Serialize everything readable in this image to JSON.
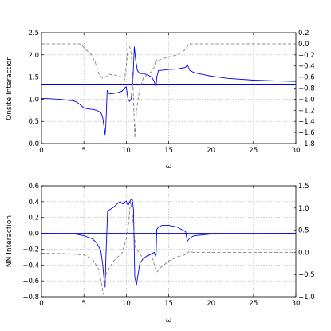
{
  "chart_data": [
    {
      "type": "line",
      "xlabel": "ω",
      "ylabel": "Onsite Interaction",
      "xlim": [
        0,
        30
      ],
      "ylim": [
        0.0,
        2.5
      ],
      "y2lim": [
        -1.8,
        0.2
      ],
      "xticks": [
        "0",
        "5",
        "10",
        "15",
        "20",
        "25",
        "30"
      ],
      "yticks": [
        "0.0",
        "0.5",
        "1.0",
        "1.5",
        "2.0",
        "2.5"
      ],
      "y2ticks": [
        "−1.8",
        "−1.6",
        "−1.4",
        "−1.2",
        "−1.0",
        "−0.8",
        "−0.6",
        "−0.4",
        "−0.2",
        "0.0",
        "0.2"
      ],
      "grid": true,
      "series": [
        {
          "axis": "left",
          "style": "solid",
          "color": "#0000ee",
          "x": [
            0,
            1,
            2,
            3,
            3.8,
            4.2,
            4.6,
            5,
            5.5,
            6,
            6.5,
            7,
            7.2,
            7.4,
            7.5,
            7.6,
            7.75,
            8,
            8.5,
            9,
            9.5,
            9.8,
            10,
            10.2,
            10.4,
            10.6,
            10.8,
            10.95,
            11.1,
            11.3,
            11.6,
            12,
            12.5,
            13,
            13.3,
            13.5,
            13.6,
            13.8,
            14,
            15,
            16,
            16.5,
            17,
            17.2,
            17.5,
            18,
            19,
            20,
            22,
            25,
            28,
            30
          ],
          "y": [
            1.02,
            1.01,
            1.0,
            0.98,
            0.96,
            0.93,
            0.87,
            0.8,
            0.78,
            0.77,
            0.75,
            0.7,
            0.6,
            0.35,
            0.2,
            0.45,
            1.2,
            1.12,
            1.13,
            1.15,
            1.18,
            1.25,
            1.28,
            1.0,
            0.95,
            1.02,
            1.5,
            2.18,
            1.9,
            1.65,
            1.58,
            1.58,
            1.55,
            1.5,
            1.4,
            1.28,
            1.5,
            1.65,
            1.65,
            1.67,
            1.68,
            1.7,
            1.72,
            1.78,
            1.65,
            1.6,
            1.56,
            1.52,
            1.47,
            1.43,
            1.41,
            1.4
          ]
        },
        {
          "axis": "left",
          "style": "solid",
          "color": "#0000ee",
          "x": [
            0,
            30
          ],
          "y": [
            1.34,
            1.34
          ]
        },
        {
          "axis": "right",
          "style": "dashed",
          "color": "#808080",
          "x": [
            0,
            4.5,
            4.8,
            5.2,
            5.8,
            6.3,
            6.8,
            7.2,
            7.6,
            8,
            8.5,
            9,
            9.5,
            9.8,
            10.0,
            10.2,
            10.4,
            10.6,
            10.8,
            11.0,
            11.2,
            11.6,
            12,
            12.5,
            13,
            13.3,
            13.5,
            13.7,
            14,
            15,
            16,
            16.5,
            17,
            17.3,
            17.6,
            18,
            20,
            25,
            30
          ],
          "y": [
            0.0,
            0.0,
            -0.03,
            -0.1,
            -0.18,
            -0.32,
            -0.55,
            -0.62,
            -0.6,
            -0.55,
            -0.56,
            -0.58,
            -0.6,
            -0.65,
            -0.4,
            -0.05,
            -0.05,
            -0.2,
            -0.75,
            -1.7,
            -1.2,
            -0.8,
            -0.62,
            -0.55,
            -0.5,
            -0.42,
            -0.28,
            -0.33,
            -0.28,
            -0.24,
            -0.2,
            -0.16,
            -0.1,
            -0.03,
            0.0,
            0.0,
            0.0,
            0.0,
            0.0
          ]
        }
      ]
    },
    {
      "type": "line",
      "xlabel": "ω",
      "ylabel": "NN Interaction",
      "xlim": [
        0,
        30
      ],
      "ylim": [
        -0.8,
        0.6
      ],
      "y2lim": [
        -1.0,
        1.5
      ],
      "xticks": [
        "0",
        "5",
        "10",
        "15",
        "20",
        "25",
        "30"
      ],
      "yticks": [
        "−0.8",
        "−0.6",
        "−0.4",
        "−0.2",
        "0.0",
        "0.2",
        "0.4",
        "0.6"
      ],
      "y2ticks": [
        "−1.0",
        "−0.5",
        "0.0",
        "0.5",
        "1.0",
        "1.5"
      ],
      "grid": true,
      "series": [
        {
          "axis": "left",
          "style": "solid",
          "color": "#0000ee",
          "x": [
            0,
            2,
            4,
            5,
            6,
            6.5,
            7,
            7.2,
            7.4,
            7.5,
            7.6,
            7.8,
            8.5,
            9,
            9.3,
            9.6,
            10,
            10.2,
            10.5,
            10.7,
            10.85,
            11.0,
            11.2,
            11.6,
            12,
            12.5,
            13,
            13.3,
            13.5,
            13.6,
            13.8,
            14.2,
            15,
            16,
            16.5,
            17,
            17.2,
            17.5,
            18,
            20,
            25,
            30
          ],
          "y": [
            0.0,
            -0.005,
            -0.01,
            -0.03,
            -0.07,
            -0.12,
            -0.22,
            -0.38,
            -0.6,
            -0.68,
            -0.3,
            0.28,
            0.33,
            0.38,
            0.4,
            0.37,
            0.41,
            0.35,
            0.42,
            0.43,
            0.3,
            -0.55,
            -0.65,
            -0.38,
            -0.32,
            -0.28,
            -0.26,
            -0.24,
            -0.3,
            0.05,
            0.08,
            0.1,
            0.1,
            0.08,
            0.05,
            0.02,
            -0.1,
            -0.06,
            -0.03,
            -0.01,
            -0.005,
            0.0
          ]
        },
        {
          "axis": "left",
          "style": "solid",
          "color": "#0000ee",
          "x": [
            0,
            30
          ],
          "y": [
            0.0,
            0.0
          ]
        },
        {
          "axis": "right",
          "style": "dashed",
          "color": "#808080",
          "x": [
            0,
            3,
            5,
            6,
            6.8,
            7.3,
            7.6,
            8,
            8.5,
            9,
            9.5,
            10,
            10.3,
            10.5,
            10.7,
            10.9,
            11.1,
            11.5,
            12,
            12.5,
            13,
            13.3,
            13.6,
            14,
            15,
            16,
            17,
            17.4,
            18,
            20,
            30
          ],
          "y": [
            -0.02,
            -0.03,
            -0.06,
            -0.15,
            -0.4,
            -0.95,
            -0.5,
            -0.35,
            -0.2,
            -0.1,
            -0.02,
            0.3,
            0.7,
            1.15,
            0.9,
            0.5,
            0.1,
            0.0,
            -0.15,
            -0.1,
            -0.02,
            -0.28,
            -0.45,
            -0.35,
            -0.2,
            -0.1,
            -0.05,
            0.02,
            0.0,
            0.0,
            0.0
          ]
        }
      ]
    }
  ]
}
